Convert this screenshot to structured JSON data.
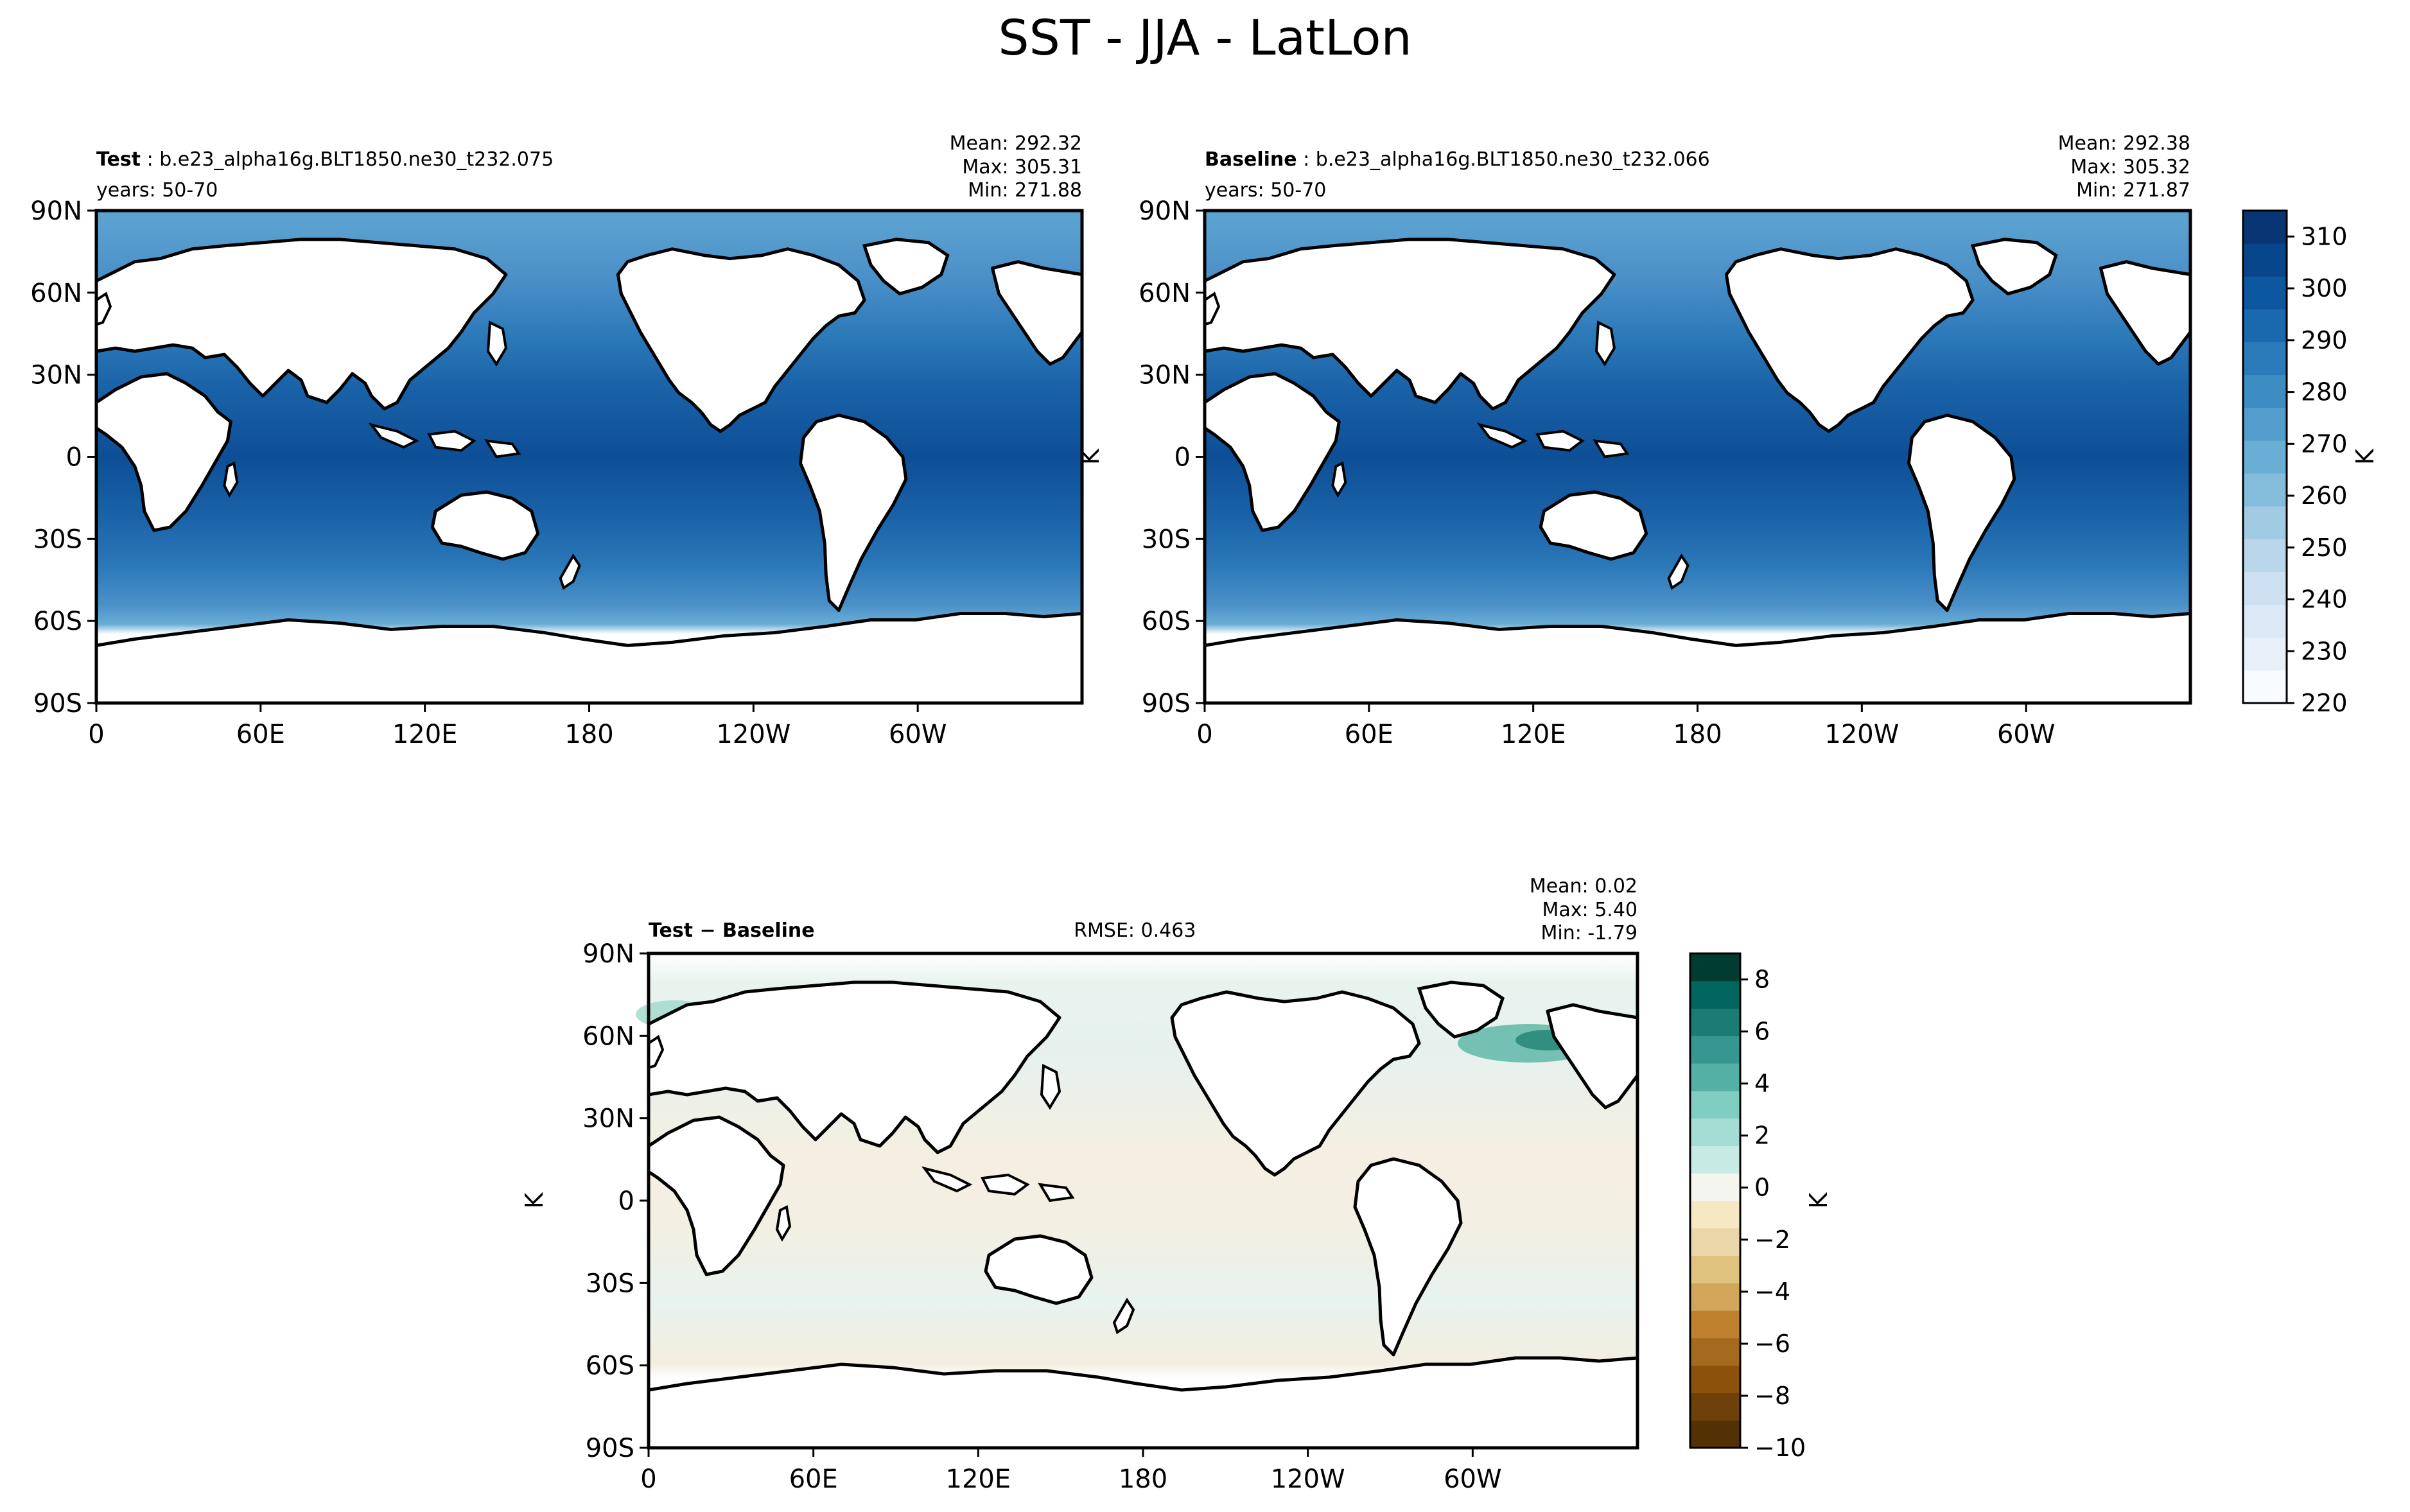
{
  "figure_title": "SST - JJA - LatLon",
  "chart_data": [
    {
      "type": "heatmap",
      "panel": "test",
      "label_bold": "Test",
      "case_name": "b.e23_alpha16g.BLT1850.ne30_t232.075",
      "years": "years: 50-70",
      "stats": {
        "mean": "Mean: 292.32",
        "max": "Max: 305.31",
        "min": "Min: 271.88"
      },
      "xticks": [
        "0",
        "60E",
        "120E",
        "180",
        "120W",
        "60W"
      ],
      "yticks": [
        "90N",
        "60N",
        "30N",
        "0",
        "30S",
        "60S",
        "90S"
      ],
      "xlim": [
        0,
        360
      ],
      "ylim": [
        -90,
        90
      ],
      "ylabel": "",
      "units": "K",
      "field": "sea surface temperature, K"
    },
    {
      "type": "heatmap",
      "panel": "baseline",
      "label_bold": "Baseline",
      "case_name": "b.e23_alpha16g.BLT1850.ne30_t232.066",
      "years": "years: 50-70",
      "stats": {
        "mean": "Mean: 292.38",
        "max": "Max: 305.32",
        "min": "Min: 271.87"
      },
      "xticks": [
        "0",
        "60E",
        "120E",
        "180",
        "120W",
        "60W"
      ],
      "yticks": [
        "90N",
        "60N",
        "30N",
        "0",
        "30S",
        "60S",
        "90S"
      ],
      "xlim": [
        0,
        360
      ],
      "ylim": [
        -90,
        90
      ],
      "ylabel": "K",
      "units": "K",
      "colorbar": {
        "ticks": [
          310,
          300,
          290,
          280,
          270,
          260,
          250,
          240,
          230,
          220
        ],
        "range": [
          220,
          315
        ],
        "label": "K",
        "colors": [
          "#f7fbff",
          "#e8f1fa",
          "#dbe9f6",
          "#cde0f1",
          "#bad6eb",
          "#a0cbe2",
          "#84bcdb",
          "#6aaed6",
          "#529dcc",
          "#3d8dc3",
          "#2b7bba",
          "#1a68ae",
          "#0d57a1",
          "#08468b",
          "#083674"
        ]
      }
    },
    {
      "type": "heatmap",
      "panel": "difference",
      "label_bold": "Test − Baseline",
      "rmse": "RMSE: 0.463",
      "stats": {
        "mean": "Mean:  0.02",
        "max": "Max:  5.40",
        "min": "Min: -1.79"
      },
      "xticks": [
        "0",
        "60E",
        "120E",
        "180",
        "120W",
        "60W"
      ],
      "yticks": [
        "90N",
        "60N",
        "30N",
        "0",
        "30S",
        "60S",
        "90S"
      ],
      "xlim": [
        0,
        360
      ],
      "ylim": [
        -90,
        90
      ],
      "ylabel": "K",
      "units": "K",
      "colorbar": {
        "ticks": [
          8,
          6,
          4,
          2,
          0,
          -2,
          -4,
          -6,
          -8,
          -10
        ],
        "range": [
          -10,
          9
        ],
        "label": "K",
        "colors": [
          "#543005",
          "#6e400a",
          "#8c510a",
          "#a66a1e",
          "#bf812d",
          "#d1a55a",
          "#dfc27d",
          "#ead6a8",
          "#f6e8c3",
          "#f5f5f0",
          "#c7eae5",
          "#a5dcd3",
          "#80cdc1",
          "#54b0a4",
          "#35978f",
          "#1a7c72",
          "#01665e",
          "#003c30"
        ]
      }
    }
  ]
}
